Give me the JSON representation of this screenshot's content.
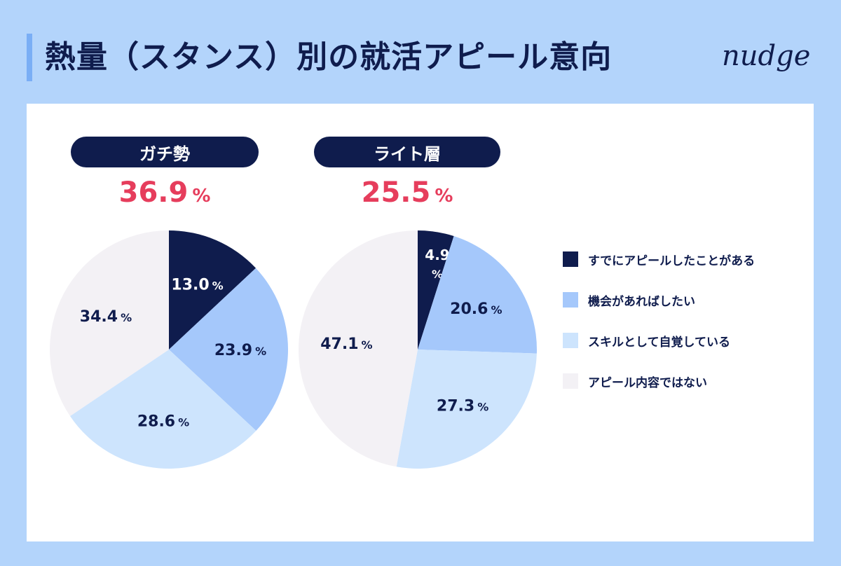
{
  "title": "熱量（スタンス）別の就活アピール意向",
  "logo": "nudge",
  "colors": {
    "navy": "#0f1c4d",
    "medium_blue": "#a5c8fb",
    "light_blue": "#cde4fd",
    "pale": "#f3f1f5",
    "accent_red": "#e63d5c",
    "background": "#b3d4fb"
  },
  "legend": [
    {
      "label": "すでにアピールしたことがある",
      "color": "#0f1c4d"
    },
    {
      "label": "機会があればしたい",
      "color": "#a5c8fb"
    },
    {
      "label": "スキルとして自覚している",
      "color": "#cde4fd"
    },
    {
      "label": "アピール内容ではない",
      "color": "#f3f1f5"
    }
  ],
  "groups": [
    {
      "label": "ガチ勢",
      "highlight_value": "36.9",
      "highlight_unit": "%"
    },
    {
      "label": "ライト層",
      "highlight_value": "25.5",
      "highlight_unit": "%"
    }
  ],
  "chart_data": [
    {
      "type": "pie",
      "title": "ガチ勢",
      "categories": [
        "すでにアピールしたことがある",
        "機会があればしたい",
        "スキルとして自覚している",
        "アピール内容ではない"
      ],
      "values": [
        13.0,
        23.9,
        28.6,
        34.4
      ],
      "labels": [
        "13.0",
        "23.9",
        "28.6",
        "34.4"
      ],
      "unit": "%"
    },
    {
      "type": "pie",
      "title": "ライト層",
      "categories": [
        "すでにアピールしたことがある",
        "機会があればしたい",
        "スキルとして自覚している",
        "アピール内容ではない"
      ],
      "values": [
        4.9,
        20.6,
        27.3,
        47.1
      ],
      "labels": [
        "4.9",
        "20.6",
        "27.3",
        "47.1"
      ],
      "unit": "%"
    }
  ]
}
